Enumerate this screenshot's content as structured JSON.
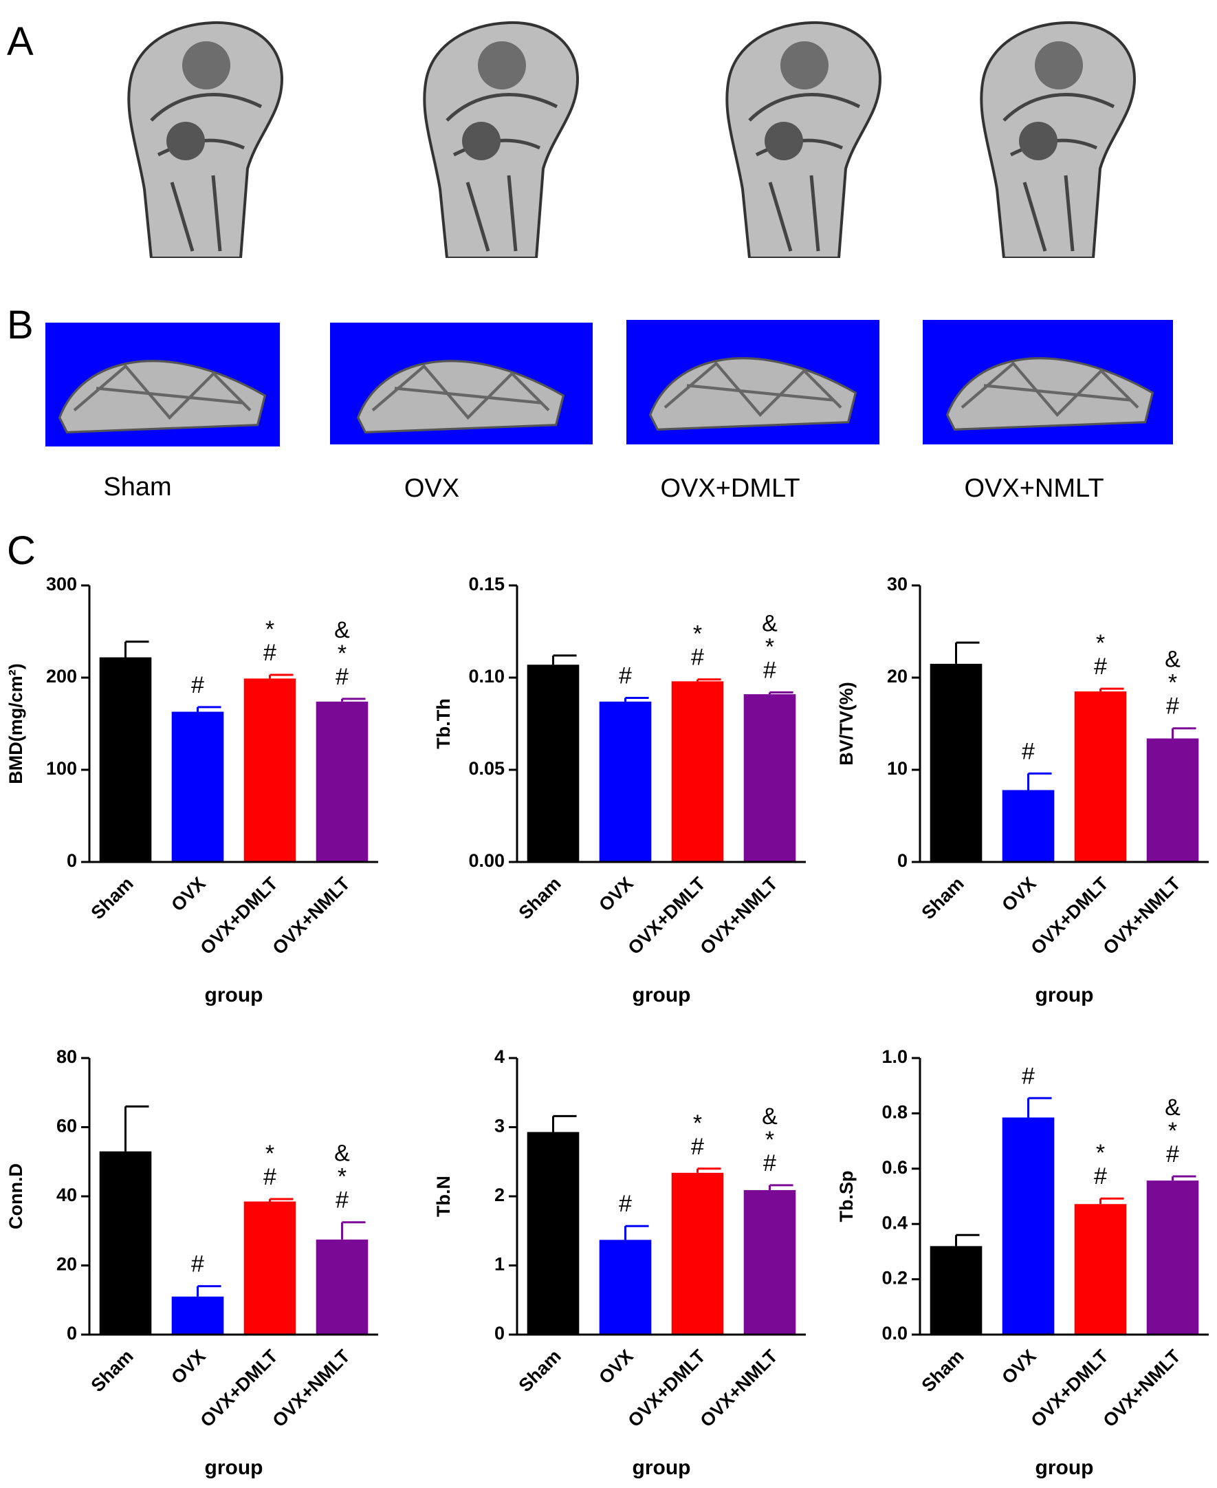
{
  "panel_labels": [
    "A",
    "B",
    "C"
  ],
  "groups": [
    "Sham",
    "OVX",
    "OVX+DMLT",
    "OVX+NMLT"
  ],
  "chart_data": [
    {
      "type": "bar",
      "ylabel": "BMD(mg/cm²)",
      "xlabel": "group",
      "categories": [
        "Sham",
        "OVX",
        "OVX+DMLT",
        "OVX+NMLT"
      ],
      "values": [
        222,
        163,
        199,
        174
      ],
      "errors": [
        17,
        5,
        4,
        3
      ],
      "colors": [
        "#000000",
        "#0000ff",
        "#ff0000",
        "#7a0a96"
      ],
      "ylim": [
        0,
        300
      ],
      "yticks": [
        0,
        100,
        200,
        300
      ],
      "annotations": [
        [],
        [
          "#"
        ],
        [
          "*",
          "#"
        ],
        [
          "&",
          "*",
          "#"
        ]
      ]
    },
    {
      "type": "bar",
      "ylabel": "Tb.Th",
      "xlabel": "group",
      "categories": [
        "Sham",
        "OVX",
        "OVX+DMLT",
        "OVX+NMLT"
      ],
      "values": [
        0.107,
        0.087,
        0.098,
        0.091
      ],
      "errors": [
        0.005,
        0.002,
        0.001,
        0.001
      ],
      "colors": [
        "#000000",
        "#0000ff",
        "#ff0000",
        "#7a0a96"
      ],
      "ylim": [
        0,
        0.15
      ],
      "yticks": [
        {
          "value": 0,
          "label": "0.00"
        },
        {
          "value": 0.05,
          "label": "0.05"
        },
        {
          "value": 0.1,
          "label": "0.10"
        },
        {
          "value": 0.15,
          "label": "0.15"
        }
      ],
      "annotations": [
        [],
        [
          "#"
        ],
        [
          "*",
          "#"
        ],
        [
          "&",
          "*",
          "#"
        ]
      ]
    },
    {
      "type": "bar",
      "ylabel": "BV/TV(%)",
      "xlabel": "group",
      "categories": [
        "Sham",
        "OVX",
        "OVX+DMLT",
        "OVX+NMLT"
      ],
      "values": [
        21.5,
        7.8,
        18.5,
        13.4
      ],
      "errors": [
        2.3,
        1.8,
        0.3,
        1.1
      ],
      "colors": [
        "#000000",
        "#0000ff",
        "#ff0000",
        "#7a0a96"
      ],
      "ylim": [
        0,
        30
      ],
      "yticks": [
        0,
        10,
        20,
        30
      ],
      "annotations": [
        [],
        [
          "#"
        ],
        [
          "*",
          "#"
        ],
        [
          "&",
          "*",
          "#"
        ]
      ]
    },
    {
      "type": "bar",
      "ylabel": "Conn.D",
      "xlabel": "group",
      "categories": [
        "Sham",
        "OVX",
        "OVX+DMLT",
        "OVX+NMLT"
      ],
      "values": [
        53,
        11,
        38.5,
        27.5
      ],
      "errors": [
        13,
        3,
        0.7,
        5
      ],
      "colors": [
        "#000000",
        "#0000ff",
        "#ff0000",
        "#7a0a96"
      ],
      "ylim": [
        0,
        80
      ],
      "yticks": [
        0,
        20,
        40,
        60,
        80
      ],
      "annotations": [
        [],
        [
          "#"
        ],
        [
          "*",
          "#"
        ],
        [
          "&",
          "*",
          "#"
        ]
      ]
    },
    {
      "type": "bar",
      "ylabel": "Tb.N",
      "xlabel": "group",
      "categories": [
        "Sham",
        "OVX",
        "OVX+DMLT",
        "OVX+NMLT"
      ],
      "values": [
        2.93,
        1.37,
        2.34,
        2.09
      ],
      "errors": [
        0.23,
        0.2,
        0.06,
        0.07
      ],
      "colors": [
        "#000000",
        "#0000ff",
        "#ff0000",
        "#7a0a96"
      ],
      "ylim": [
        0,
        4
      ],
      "yticks": [
        0,
        1,
        2,
        3,
        4
      ],
      "annotations": [
        [],
        [
          "#"
        ],
        [
          "*",
          "#"
        ],
        [
          "&",
          "*",
          "#"
        ]
      ]
    },
    {
      "type": "bar",
      "ylabel": "Tb.Sp",
      "xlabel": "group",
      "categories": [
        "Sham",
        "OVX",
        "OVX+DMLT",
        "OVX+NMLT"
      ],
      "values": [
        0.32,
        0.785,
        0.472,
        0.557
      ],
      "errors": [
        0.04,
        0.07,
        0.02,
        0.015
      ],
      "colors": [
        "#000000",
        "#0000ff",
        "#ff0000",
        "#7a0a96"
      ],
      "ylim": [
        0,
        1
      ],
      "yticks": [
        {
          "value": 0,
          "label": "0.0"
        },
        {
          "value": 0.2,
          "label": "0.2"
        },
        {
          "value": 0.4,
          "label": "0.4"
        },
        {
          "value": 0.6,
          "label": "0.6"
        },
        {
          "value": 0.8,
          "label": "0.8"
        },
        {
          "value": 1,
          "label": "1.0"
        }
      ],
      "annotations": [
        [],
        [
          "#"
        ],
        [
          "*",
          "#"
        ],
        [
          "&",
          "*",
          "#"
        ]
      ]
    }
  ]
}
